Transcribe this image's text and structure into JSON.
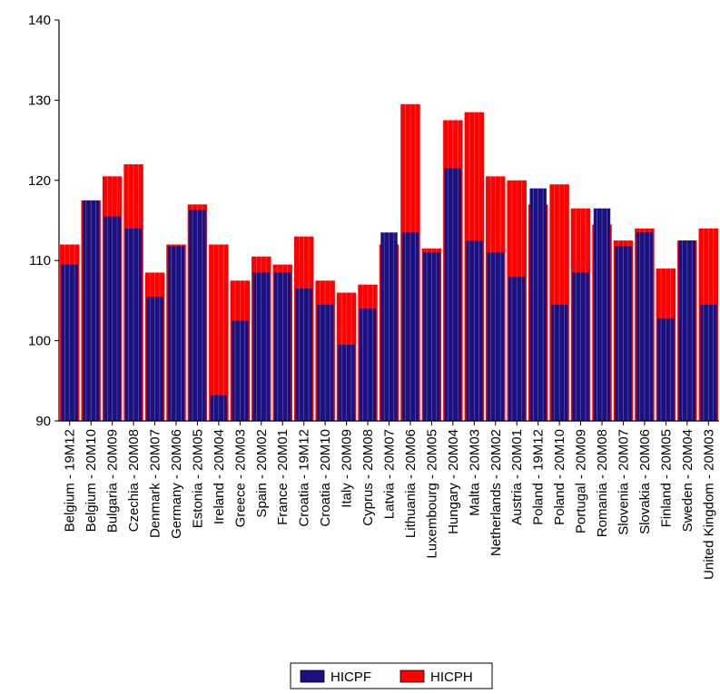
{
  "chart_data": {
    "type": "bar",
    "ylim": [
      90,
      140
    ],
    "yticks": [
      90,
      100,
      110,
      120,
      130,
      140
    ],
    "grid": false,
    "legend_placement": "bottom-center",
    "colors": {
      "HICPF": "#1a1080",
      "HICPH": "#ff0000",
      "axis": "#000000"
    },
    "categories": [
      "Belgium - 19M12",
      "Belgium - 20M10",
      "Bulgaria - 20M09",
      "Czechia - 20M08",
      "Denmark - 20M07",
      "Germany - 20M06",
      "Estonia - 20M05",
      "Ireland - 20M04",
      "Greece - 20M03",
      "Spain - 20M02",
      "France - 20M01",
      "Croatia - 19M12",
      "Croatia - 20M10",
      "Italy - 20M09",
      "Cyprus - 20M08",
      "Latvia - 20M07",
      "Lithuania - 20M06",
      "Luxembourg - 20M05",
      "Hungary - 20M04",
      "Malta - 20M03",
      "Netherlands - 20M02",
      "Austria - 20M01",
      "Poland - 19M12",
      "Poland - 20M10",
      "Portugal - 20M09",
      "Romania - 20M08",
      "Slovenia - 20M07",
      "Slovakia - 20M06",
      "Finland - 20M05",
      "Sweden - 20M04",
      "United Kingdom - 20M03"
    ],
    "series": [
      {
        "name": "HICPF",
        "values": [
          109.5,
          117.5,
          115.5,
          114,
          105.5,
          111.8,
          116.3,
          93.2,
          102.5,
          108.5,
          108.5,
          106.5,
          104.5,
          99.5,
          104,
          113.5,
          113.5,
          111,
          121.5,
          112.5,
          111,
          108,
          119,
          104.5,
          108.5,
          116.5,
          111.8,
          113.5,
          102.8,
          112.5,
          104.5
        ]
      },
      {
        "name": "HICPH",
        "values": [
          112,
          117.5,
          120.5,
          122,
          108.5,
          112,
          117,
          112,
          107.5,
          110.5,
          109.5,
          113,
          107.5,
          106,
          107,
          112,
          129.5,
          111.5,
          127.5,
          128.5,
          120.5,
          120,
          117,
          119.5,
          116.5,
          114.5,
          112.5,
          114,
          109,
          112.5,
          114
        ]
      }
    ]
  }
}
